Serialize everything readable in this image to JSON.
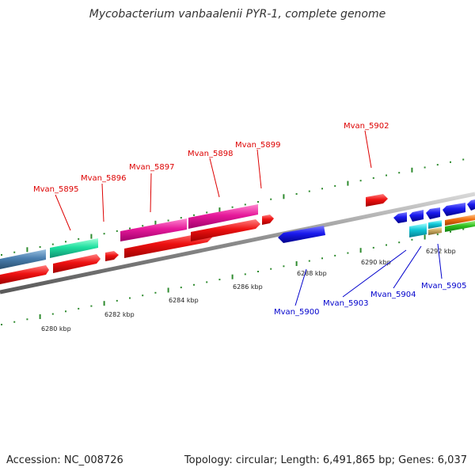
{
  "title": "Mycobacterium vanbaalenii PYR-1, complete genome",
  "footer": {
    "accession": "Accession: NC_008726",
    "summary": "Topology: circular; Length: 6,491,865 bp; Genes: 6,037"
  },
  "colors": {
    "backbone": "#8a8a8a",
    "tick": "#2e8b2e",
    "forward_gene": "#ee1111",
    "reverse_gene": "#1a1aee",
    "label_forward": "#dd0000",
    "label_reverse": "#0000cc"
  },
  "scale_labels": [
    "6280 kbp",
    "6282 kbp",
    "6284 kbp",
    "6286 kbp",
    "6288 kbp",
    "6290 kbp",
    "6292 kbp"
  ],
  "forward_labels": [
    "Mvan_5895",
    "Mvan_5896",
    "Mvan_5897",
    "Mvan_5898",
    "Mvan_5899",
    "Mvan_5902"
  ],
  "reverse_labels": [
    "Mvan_5900",
    "Mvan_5903",
    "Mvan_5904",
    "Mvan_5905"
  ]
}
